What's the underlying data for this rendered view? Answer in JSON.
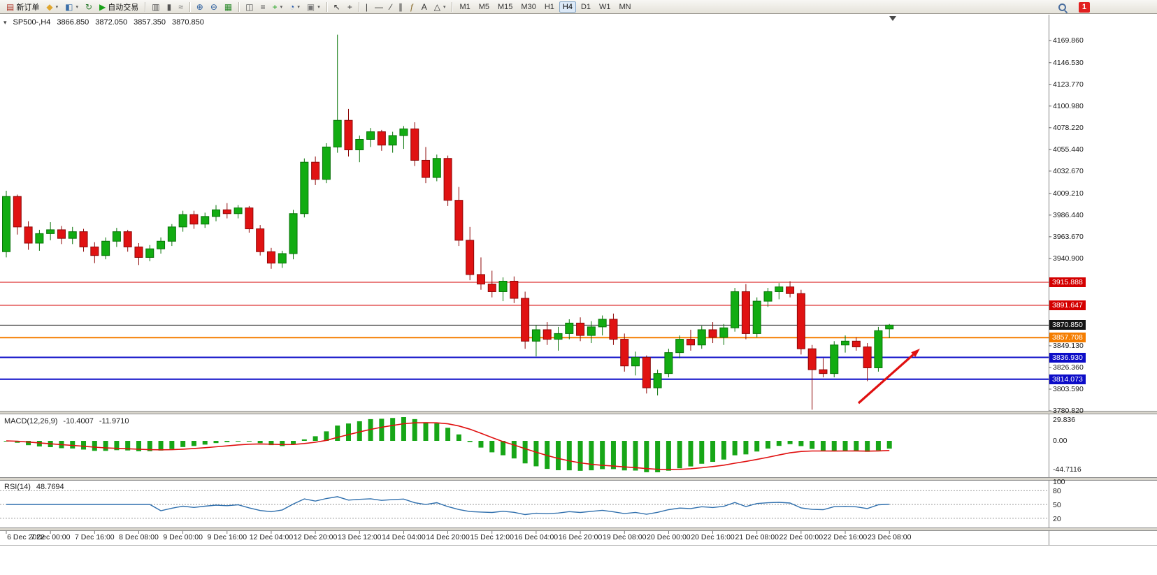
{
  "toolbar": {
    "notification_count": "1",
    "timeframes": [
      "M1",
      "M5",
      "M15",
      "M30",
      "H1",
      "H4",
      "D1",
      "W1",
      "MN"
    ],
    "active_timeframe": "H4",
    "buttons": [
      {
        "type": "btn",
        "name": "new-order",
        "glyph": "▤",
        "glyph_color": "#b03a2e",
        "label": "新订单"
      },
      {
        "type": "btn",
        "name": "new-chart",
        "glyph": "◆",
        "glyph_color": "#e0a62e",
        "caret": true
      },
      {
        "type": "btn",
        "name": "profiles",
        "glyph": "◧",
        "glyph_color": "#3a6ea8",
        "caret": true
      },
      {
        "type": "btn",
        "name": "refresh-community",
        "glyph": "↻",
        "glyph_color": "#2e7d32"
      },
      {
        "type": "btn",
        "name": "autotrading",
        "glyph": "▶",
        "glyph_color": "#18a018",
        "label": "自动交易"
      },
      {
        "type": "sep"
      },
      {
        "type": "btn",
        "name": "chart-bars",
        "glyph": "▥",
        "glyph_color": "#555555"
      },
      {
        "type": "btn",
        "name": "chart-candles",
        "glyph": "▮",
        "glyph_color": "#555555"
      },
      {
        "type": "btn",
        "name": "chart-line",
        "glyph": "≈",
        "glyph_color": "#555555"
      },
      {
        "type": "sep"
      },
      {
        "type": "btn",
        "name": "zoom-in",
        "glyph": "⊕",
        "glyph_color": "#2a5d9e"
      },
      {
        "type": "btn",
        "name": "zoom-out",
        "glyph": "⊖",
        "glyph_color": "#2a5d9e"
      },
      {
        "type": "btn",
        "name": "tile-windows",
        "glyph": "▦",
        "glyph_color": "#2e8b2e"
      },
      {
        "type": "sep"
      },
      {
        "type": "btn",
        "name": "indicators",
        "glyph": "◫",
        "glyph_color": "#555555"
      },
      {
        "type": "btn",
        "name": "objects-list",
        "glyph": "≡",
        "glyph_color": "#555555"
      },
      {
        "type": "btn",
        "name": "add-indicator",
        "glyph": "+",
        "glyph_color": "#18a018",
        "caret": true
      },
      {
        "type": "btn",
        "name": "periods",
        "glyph": "◔",
        "glyph_color": "#2255aa",
        "caret": true
      },
      {
        "type": "btn",
        "name": "templates",
        "glyph": "▣",
        "glyph_color": "#777777",
        "caret": true
      },
      {
        "type": "sep"
      },
      {
        "type": "btn",
        "name": "cursor",
        "glyph": "↖",
        "glyph_color": "#333333"
      },
      {
        "type": "btn",
        "name": "crosshair",
        "glyph": "+",
        "glyph_color": "#333333"
      },
      {
        "type": "sep"
      },
      {
        "type": "btn",
        "name": "vertical-line",
        "glyph": "|",
        "glyph_color": "#333333"
      },
      {
        "type": "btn",
        "name": "horizontal-line",
        "glyph": "—",
        "glyph_color": "#333333"
      },
      {
        "type": "btn",
        "name": "trend-line",
        "glyph": "∕",
        "glyph_color": "#333333"
      },
      {
        "type": "btn",
        "name": "channel",
        "glyph": "∥",
        "glyph_color": "#333333"
      },
      {
        "type": "btn",
        "name": "fibonacci",
        "glyph": "ƒ",
        "glyph_color": "#8a6d2f"
      },
      {
        "type": "btn",
        "name": "text-label",
        "glyph": "A",
        "glyph_color": "#333333"
      },
      {
        "type": "btn",
        "name": "shapes",
        "glyph": "△",
        "glyph_color": "#333333",
        "caret": true
      },
      {
        "type": "sep"
      }
    ]
  },
  "chart": {
    "one_click_glyph": "▾",
    "info": {
      "symbol_period": "SP500-,H4",
      "open": "3866.850",
      "high": "3872.050",
      "low": "3857.350",
      "close": "3870.850"
    }
  },
  "chart_data": {
    "type": "candlestick",
    "symbol": "SP500-",
    "timeframe": "H4",
    "price_axis_labels": [
      "4169.860",
      "4146.530",
      "4123.770",
      "4100.980",
      "4078.220",
      "4055.440",
      "4032.670",
      "4009.210",
      "3986.440",
      "3963.670",
      "3940.900",
      "3849.130",
      "3826.360",
      "3803.590",
      "3780.820"
    ],
    "time_labels": [
      "6 Dec 2022",
      "7 Dec 00:00",
      "7 Dec 16:00",
      "8 Dec 08:00",
      "9 Dec 00:00",
      "9 Dec 16:00",
      "12 Dec 04:00",
      "12 Dec 20:00",
      "13 Dec 12:00",
      "14 Dec 04:00",
      "14 Dec 20:00",
      "15 Dec 12:00",
      "16 Dec 04:00",
      "16 Dec 20:00",
      "19 Dec 08:00",
      "20 Dec 00:00",
      "20 Dec 16:00",
      "21 Dec 08:00",
      "22 Dec 00:00",
      "22 Dec 16:00",
      "23 Dec 08:00"
    ],
    "hlines": [
      {
        "price": 3915.888,
        "label": "3915.888",
        "color": "#d40000",
        "width": 1
      },
      {
        "price": 3891.647,
        "label": "3891.647",
        "color": "#d40000",
        "width": 1
      },
      {
        "price": 3870.85,
        "label": "3870.850",
        "color": "#151515",
        "width": 1,
        "role": "current-price"
      },
      {
        "price": 3857.708,
        "label": "3857.708",
        "color": "#f57d00",
        "width": 2
      },
      {
        "price": 3836.93,
        "label": "3836.930",
        "color": "#0d0dc8",
        "width": 2
      },
      {
        "price": 3814.073,
        "label": "3814.073",
        "color": "#0d0dc8",
        "width": 2
      }
    ],
    "indicators": {
      "macd": {
        "label": "MACD(12,26,9)",
        "value_main": "-10.4007",
        "value_signal": "-11.9710",
        "params": {
          "fast": 12,
          "slow": 26,
          "signal": 9
        },
        "axis_labels": [
          "29.836",
          "0.00",
          "-44.7116"
        ]
      },
      "rsi": {
        "label": "RSI(14)",
        "value": "48.7694",
        "period": 14,
        "axis_labels": [
          "100",
          "80",
          "50",
          "20"
        ],
        "levels": [
          80,
          50,
          20
        ]
      }
    },
    "annotation_arrow": {
      "from": [
        1228,
        577
      ],
      "to": [
        1316,
        499
      ],
      "color": "#e01010"
    },
    "candles": [
      [
        3948,
        4012,
        3942,
        4006
      ],
      [
        4006,
        4008,
        3966,
        3974
      ],
      [
        3974,
        3980,
        3950,
        3957
      ],
      [
        3957,
        3971,
        3949,
        3967
      ],
      [
        3967,
        3979,
        3960,
        3971
      ],
      [
        3971,
        3975,
        3956,
        3962
      ],
      [
        3962,
        3974,
        3956,
        3969
      ],
      [
        3969,
        3972,
        3948,
        3953
      ],
      [
        3953,
        3958,
        3936,
        3944
      ],
      [
        3944,
        3963,
        3940,
        3959
      ],
      [
        3959,
        3973,
        3953,
        3969
      ],
      [
        3969,
        3971,
        3948,
        3953
      ],
      [
        3953,
        3957,
        3934,
        3942
      ],
      [
        3942,
        3955,
        3938,
        3951
      ],
      [
        3951,
        3963,
        3946,
        3959
      ],
      [
        3959,
        3977,
        3954,
        3974
      ],
      [
        3974,
        3991,
        3969,
        3987
      ],
      [
        3987,
        3991,
        3972,
        3977
      ],
      [
        3977,
        3989,
        3973,
        3985
      ],
      [
        3985,
        3997,
        3980,
        3992
      ],
      [
        3992,
        3999,
        3983,
        3988
      ],
      [
        3988,
        3997,
        3983,
        3994
      ],
      [
        3994,
        3996,
        3968,
        3972
      ],
      [
        3972,
        3976,
        3944,
        3948
      ],
      [
        3948,
        3952,
        3930,
        3936
      ],
      [
        3936,
        3949,
        3931,
        3946
      ],
      [
        3946,
        3992,
        3940,
        3988
      ],
      [
        3988,
        4046,
        3984,
        4042
      ],
      [
        4042,
        4048,
        4018,
        4024
      ],
      [
        4024,
        4062,
        4020,
        4058
      ],
      [
        4058,
        4176,
        4052,
        4086
      ],
      [
        4086,
        4098,
        4048,
        4055
      ],
      [
        4055,
        4070,
        4042,
        4066
      ],
      [
        4066,
        4078,
        4058,
        4074
      ],
      [
        4074,
        4076,
        4054,
        4060
      ],
      [
        4060,
        4074,
        4052,
        4070
      ],
      [
        4070,
        4080,
        4056,
        4077
      ],
      [
        4077,
        4084,
        4038,
        4044
      ],
      [
        4044,
        4058,
        4020,
        4026
      ],
      [
        4026,
        4050,
        4022,
        4046
      ],
      [
        4046,
        4049,
        3996,
        4002
      ],
      [
        4002,
        4016,
        3954,
        3960
      ],
      [
        3960,
        3974,
        3918,
        3924
      ],
      [
        3924,
        3942,
        3908,
        3914
      ],
      [
        3914,
        3928,
        3900,
        3906
      ],
      [
        3906,
        3921,
        3896,
        3917
      ],
      [
        3917,
        3922,
        3894,
        3899
      ],
      [
        3899,
        3906,
        3846,
        3854
      ],
      [
        3854,
        3871,
        3838,
        3866
      ],
      [
        3866,
        3874,
        3850,
        3856
      ],
      [
        3856,
        3869,
        3844,
        3862
      ],
      [
        3862,
        3877,
        3856,
        3873
      ],
      [
        3873,
        3879,
        3854,
        3860
      ],
      [
        3860,
        3875,
        3852,
        3869
      ],
      [
        3869,
        3881,
        3860,
        3877
      ],
      [
        3877,
        3883,
        3850,
        3856
      ],
      [
        3856,
        3862,
        3822,
        3828
      ],
      [
        3828,
        3843,
        3818,
        3837
      ],
      [
        3837,
        3839,
        3799,
        3805
      ],
      [
        3805,
        3824,
        3797,
        3820
      ],
      [
        3820,
        3846,
        3816,
        3842
      ],
      [
        3842,
        3860,
        3836,
        3856
      ],
      [
        3856,
        3866,
        3844,
        3850
      ],
      [
        3850,
        3870,
        3846,
        3866
      ],
      [
        3866,
        3874,
        3852,
        3858
      ],
      [
        3858,
        3872,
        3850,
        3868
      ],
      [
        3868,
        3910,
        3864,
        3906
      ],
      [
        3906,
        3914,
        3856,
        3862
      ],
      [
        3862,
        3900,
        3858,
        3896
      ],
      [
        3896,
        3910,
        3890,
        3906
      ],
      [
        3906,
        3915,
        3898,
        3911
      ],
      [
        3911,
        3917,
        3900,
        3904
      ],
      [
        3904,
        3908,
        3840,
        3846
      ],
      [
        3846,
        3850,
        3782,
        3824
      ],
      [
        3824,
        3836,
        3816,
        3820
      ],
      [
        3820,
        3854,
        3816,
        3850
      ],
      [
        3850,
        3860,
        3842,
        3854
      ],
      [
        3854,
        3858,
        3844,
        3848
      ],
      [
        3848,
        3852,
        3812,
        3826
      ],
      [
        3826,
        3869,
        3822,
        3865
      ],
      [
        3866.85,
        3872.05,
        3857.35,
        3870.85
      ]
    ]
  }
}
